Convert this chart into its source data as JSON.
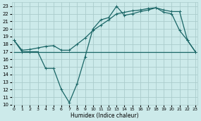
{
  "title": "",
  "xlabel": "Humidex (Indice chaleur)",
  "x_ticks": [
    0,
    1,
    2,
    3,
    4,
    5,
    6,
    7,
    8,
    9,
    10,
    11,
    12,
    13,
    14,
    15,
    16,
    17,
    18,
    19,
    20,
    21,
    22,
    23
  ],
  "ylim": [
    10,
    23.5
  ],
  "xlim": [
    -0.3,
    23.3
  ],
  "yticks": [
    10,
    11,
    12,
    13,
    14,
    15,
    16,
    17,
    18,
    19,
    20,
    21,
    22,
    23
  ],
  "bg_color": "#cceaea",
  "grid_color": "#aacccc",
  "line_color": "#1a6666",
  "line1_x": [
    0,
    1,
    2,
    3,
    4,
    5,
    6,
    7,
    8,
    9,
    10,
    11,
    12,
    13,
    14,
    15,
    16,
    17,
    18,
    19,
    20,
    21,
    22,
    23
  ],
  "line1_y": [
    18.5,
    17.0,
    17.0,
    17.0,
    14.8,
    14.8,
    12.0,
    10.3,
    12.8,
    16.3,
    20.0,
    21.2,
    21.5,
    23.0,
    21.8,
    22.0,
    22.3,
    22.5,
    22.8,
    22.2,
    22.0,
    19.8,
    18.5,
    17.0
  ],
  "line2_x": [
    0,
    1,
    2,
    3,
    4,
    5,
    6,
    7,
    8,
    9,
    10,
    11,
    12,
    13,
    14,
    15,
    16,
    17,
    18,
    19,
    20,
    21,
    22,
    23
  ],
  "line2_y": [
    18.5,
    17.2,
    17.3,
    17.5,
    17.7,
    17.8,
    17.2,
    17.2,
    18.0,
    18.8,
    19.8,
    20.5,
    21.2,
    22.0,
    22.2,
    22.4,
    22.5,
    22.7,
    22.8,
    22.5,
    22.3,
    22.3,
    18.5,
    17.0
  ],
  "line3_x": [
    0,
    23
  ],
  "line3_y": [
    17.0,
    17.0
  ],
  "marker": "+",
  "marker_size": 3.5,
  "markeredgewidth": 0.7,
  "linewidth": 0.9
}
